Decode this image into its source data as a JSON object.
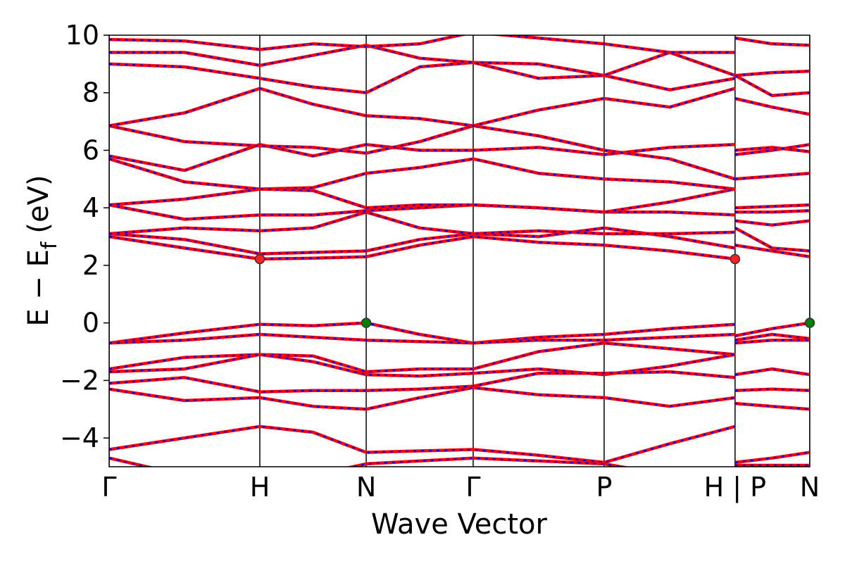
{
  "chart_data": {
    "type": "band-structure",
    "xlabel": "Wave Vector",
    "ylabel": {
      "main": "E − E",
      "subscript": "f",
      "unit": "(eV)"
    },
    "xlim": [
      0,
      4.65
    ],
    "ylim": [
      -5,
      10
    ],
    "xticks": [
      {
        "value": 0,
        "label": "Γ"
      },
      {
        "value": 1,
        "label": "H"
      },
      {
        "value": 1.706,
        "label": "N"
      },
      {
        "value": 2.416,
        "label": "Γ"
      },
      {
        "value": 3.285,
        "label": "P"
      },
      {
        "value": 4.154,
        "label": "H | P"
      },
      {
        "value": 4.65,
        "label": "N"
      }
    ],
    "yticks": [
      {
        "value": -4,
        "label": "−4"
      },
      {
        "value": -2,
        "label": "−2"
      },
      0,
      2,
      4,
      6,
      8,
      10
    ],
    "line_color": "#ff0000",
    "dash_color": "#0000ff",
    "x": [
      0,
      0.5,
      1,
      1.353,
      1.706,
      2.061,
      2.416,
      2.85,
      3.285,
      3.72,
      4.154,
      4.154,
      4.154,
      4.4,
      4.65
    ],
    "series": [
      {
        "values": [
          -0.7,
          -0.35,
          -0.05,
          -0.1,
          0.0,
          -0.4,
          -0.7,
          -0.5,
          -0.4,
          -0.2,
          -0.05,
          null,
          -0.45,
          -0.2,
          0.0
        ]
      },
      {
        "values": [
          -0.7,
          -0.6,
          -0.4,
          -0.5,
          -0.6,
          -0.65,
          -0.7,
          -0.6,
          -0.6,
          -0.5,
          -0.4,
          null,
          -0.6,
          -0.4,
          -0.55
        ]
      },
      {
        "values": [
          -1.6,
          -1.2,
          -1.1,
          -1.15,
          -1.7,
          -1.6,
          -1.6,
          -1.0,
          -0.7,
          -0.9,
          -1.1,
          null,
          -0.7,
          -0.6,
          -0.6
        ]
      },
      {
        "values": [
          -1.7,
          -1.6,
          -1.1,
          -1.35,
          -1.8,
          -1.85,
          -1.75,
          -1.6,
          -1.8,
          -1.5,
          -1.1,
          null,
          -1.8,
          -1.6,
          -1.8
        ]
      },
      {
        "values": [
          -2.1,
          -1.9,
          -2.4,
          -2.35,
          -2.35,
          -2.3,
          -2.2,
          -1.75,
          -1.75,
          -1.7,
          -1.9,
          null,
          -2.35,
          -2.3,
          -2.35
        ]
      },
      {
        "values": [
          -2.3,
          -2.7,
          -2.6,
          -2.9,
          -3.0,
          -2.6,
          -2.25,
          -2.5,
          -2.6,
          -2.9,
          -2.6,
          null,
          -2.8,
          -2.9,
          -3.0
        ]
      },
      {
        "values": [
          -4.4,
          -4.0,
          -3.6,
          -3.8,
          -4.5,
          -4.45,
          -4.4,
          -4.6,
          -4.85,
          -4.2,
          -3.6,
          null,
          -4.85,
          -4.7,
          -4.5
        ]
      },
      {
        "values": [
          -4.7,
          -5.3,
          -5.5,
          -5.3,
          -4.9,
          -4.8,
          -4.7,
          -4.8,
          -4.9,
          -5.3,
          -5.5,
          null,
          -4.95,
          -4.95,
          -4.95
        ]
      },
      {
        "values": [
          3.0,
          2.6,
          2.22,
          2.25,
          2.3,
          2.7,
          3.0,
          2.8,
          2.7,
          2.5,
          2.22,
          null,
          2.7,
          2.5,
          2.3
        ]
      },
      {
        "values": [
          3.1,
          2.9,
          2.4,
          2.45,
          2.5,
          2.9,
          3.1,
          3.0,
          3.3,
          3.0,
          2.6,
          null,
          3.3,
          2.6,
          2.5
        ]
      },
      {
        "values": [
          3.1,
          3.3,
          3.2,
          3.3,
          3.85,
          3.3,
          3.1,
          3.2,
          3.1,
          3.1,
          3.15,
          null,
          3.55,
          3.4,
          3.55
        ]
      },
      {
        "values": [
          4.1,
          3.6,
          3.75,
          3.75,
          3.9,
          4.0,
          4.1,
          4.0,
          3.85,
          3.85,
          3.75,
          null,
          3.85,
          3.85,
          3.9
        ]
      },
      {
        "values": [
          4.1,
          4.3,
          4.65,
          4.7,
          5.2,
          5.4,
          5.7,
          5.2,
          5.0,
          4.9,
          4.65,
          null,
          5.0,
          5.1,
          5.2
        ]
      },
      {
        "values": [
          5.7,
          4.9,
          4.65,
          4.6,
          4.0,
          4.1,
          4.1,
          4.0,
          3.85,
          4.2,
          4.65,
          null,
          4.0,
          4.05,
          4.1
        ]
      },
      {
        "values": [
          5.8,
          5.3,
          6.2,
          5.8,
          6.2,
          6.0,
          6.0,
          6.1,
          5.85,
          6.1,
          6.2,
          null,
          5.85,
          6.0,
          6.2
        ]
      },
      {
        "values": [
          6.85,
          6.3,
          6.15,
          6.1,
          5.9,
          6.3,
          6.85,
          6.5,
          6.0,
          5.7,
          5.0,
          null,
          6.0,
          6.1,
          5.95
        ]
      },
      {
        "values": [
          6.85,
          7.3,
          8.15,
          7.6,
          7.2,
          7.1,
          6.85,
          7.4,
          7.8,
          7.5,
          8.15,
          null,
          7.8,
          7.5,
          7.25
        ]
      },
      {
        "values": [
          9.0,
          8.9,
          8.5,
          8.2,
          8.0,
          8.9,
          9.05,
          9.0,
          8.6,
          8.1,
          8.5,
          null,
          8.6,
          8.7,
          8.75
        ]
      },
      {
        "values": [
          9.4,
          9.4,
          8.95,
          9.3,
          9.65,
          9.2,
          9.05,
          8.5,
          8.6,
          9.4,
          8.6,
          null,
          8.6,
          7.9,
          8.0
        ]
      },
      {
        "values": [
          9.85,
          9.8,
          9.5,
          9.7,
          9.6,
          9.7,
          10.1,
          9.9,
          9.7,
          9.4,
          9.4,
          null,
          9.9,
          9.7,
          9.65
        ]
      }
    ],
    "markers": [
      {
        "x": 1,
        "y": 2.22,
        "color": "#ff2020"
      },
      {
        "x": 4.154,
        "y": 2.22,
        "color": "#ff2020"
      },
      {
        "x": 1.706,
        "y": 0,
        "color": "#008000"
      },
      {
        "x": 4.65,
        "y": 0,
        "color": "#008000"
      }
    ]
  }
}
